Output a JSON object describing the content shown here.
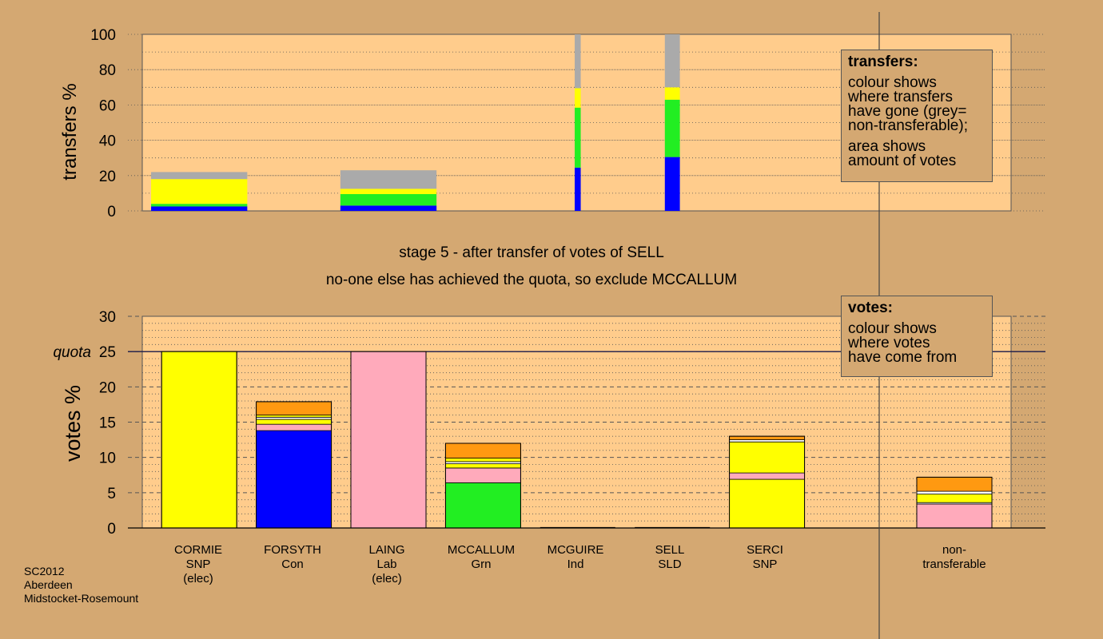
{
  "chart_data": [
    {
      "type": "bar",
      "title": "",
      "ylabel": "transfers %",
      "ylim": [
        0,
        100
      ],
      "yticks": [
        0,
        20,
        40,
        60,
        80,
        100
      ],
      "grid": true,
      "legend": {
        "title": "transfers:",
        "lines1": [
          "colour shows",
          "where transfers",
          "have gone (grey=",
          "non-transferable);"
        ],
        "lines2": [
          "area shows",
          "amount of votes"
        ]
      },
      "bars": [
        {
          "candidate": "CORMIE",
          "width_share": 1.0,
          "segments": [
            {
              "color": "#0000ff",
              "value": 2.5
            },
            {
              "color": "#22ee22",
              "value": 1.5
            },
            {
              "color": "#ffff00",
              "value": 14
            },
            {
              "color": "#aaaaaa",
              "value": 4
            }
          ]
        },
        {
          "candidate": "LAING",
          "width_share": 1.0,
          "segments": [
            {
              "color": "#0000ff",
              "value": 3
            },
            {
              "color": "#22ee22",
              "value": 6.5
            },
            {
              "color": "#ffff00",
              "value": 3
            },
            {
              "color": "#aaaaaa",
              "value": 10.5
            }
          ]
        },
        {
          "candidate": "MCGUIRE",
          "width_share": 0.08,
          "segments": [
            {
              "color": "#0000ff",
              "value": 24.5
            },
            {
              "color": "#22ee22",
              "value": 34
            },
            {
              "color": "#ffff00",
              "value": 11
            },
            {
              "color": "#aaaaaa",
              "value": 30.5
            }
          ]
        },
        {
          "candidate": "SELL",
          "width_share": 0.2,
          "segments": [
            {
              "color": "#0000ff",
              "value": 30.5
            },
            {
              "color": "#22ee22",
              "value": 32.5
            },
            {
              "color": "#ffff00",
              "value": 7
            },
            {
              "color": "#aaaaaa",
              "value": 30
            }
          ]
        }
      ]
    },
    {
      "type": "bar",
      "title": "stage 5 - after transfer of votes of SELL",
      "subtitle": "no-one else has achieved the quota, so exclude MCCALLUM",
      "ylabel": "votes %",
      "ylim": [
        0,
        30
      ],
      "yticks": [
        0,
        5,
        10,
        15,
        20,
        25,
        30
      ],
      "quota_label": "quota",
      "quota": 25,
      "grid": true,
      "legend": {
        "title": "votes:",
        "lines1": [
          "colour shows",
          "where votes",
          "have come from"
        ]
      },
      "categories": [
        {
          "name": "CORMIE",
          "party": "SNP",
          "note": "(elec)"
        },
        {
          "name": "FORSYTH",
          "party": "Con",
          "note": ""
        },
        {
          "name": "LAING",
          "party": "Lab",
          "note": "(elec)"
        },
        {
          "name": "MCCALLUM",
          "party": "Grn",
          "note": ""
        },
        {
          "name": "MCGUIRE",
          "party": "Ind",
          "note": ""
        },
        {
          "name": "SELL",
          "party": "SLD",
          "note": ""
        },
        {
          "name": "SERCI",
          "party": "SNP",
          "note": ""
        },
        {
          "name": "non-",
          "party": "transferable",
          "note": ""
        }
      ],
      "stacks": [
        [
          {
            "color": "#ffff00",
            "value": 25
          }
        ],
        [
          {
            "color": "#0000ff",
            "value": 13.8
          },
          {
            "color": "#ffaabb",
            "value": 0.9
          },
          {
            "color": "#ffff00",
            "value": 0.7
          },
          {
            "color": "#ffffff",
            "value": 0.3
          },
          {
            "color": "#ffff00",
            "value": 0.3
          },
          {
            "color": "#ff9911",
            "value": 1.9
          }
        ],
        [
          {
            "color": "#ffaabb",
            "value": 25
          }
        ],
        [
          {
            "color": "#22ee22",
            "value": 6.4
          },
          {
            "color": "#ffaabb",
            "value": 2.1
          },
          {
            "color": "#ffff00",
            "value": 0.6
          },
          {
            "color": "#ffffff",
            "value": 0.3
          },
          {
            "color": "#ffff00",
            "value": 0.5
          },
          {
            "color": "#ff9911",
            "value": 2.1
          }
        ],
        [],
        [],
        [
          {
            "color": "#ffff00",
            "value": 6.9
          },
          {
            "color": "#ffaabb",
            "value": 0.9
          },
          {
            "color": "#ffff00",
            "value": 4.4
          },
          {
            "color": "#ffffff",
            "value": 0.3
          },
          {
            "color": "#ff9911",
            "value": 0.5
          }
        ],
        [
          {
            "color": "#ffaabb",
            "value": 3.4
          },
          {
            "color": "#ffffff",
            "value": 0.2
          },
          {
            "color": "#ffff00",
            "value": 1.2
          },
          {
            "color": "#ffffff",
            "value": 0.4
          },
          {
            "color": "#ff9911",
            "value": 2.0
          }
        ]
      ]
    }
  ],
  "footer": {
    "line1": "SC2012",
    "line2": "Aberdeen",
    "line3": "Midstocket-Rosemount"
  }
}
